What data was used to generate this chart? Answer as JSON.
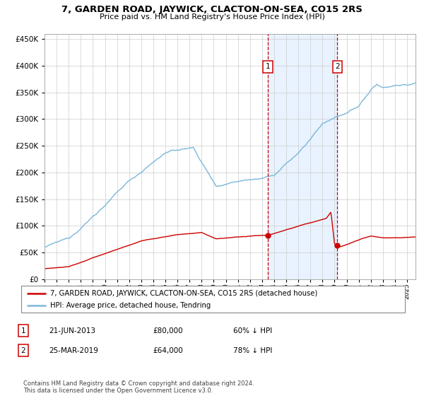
{
  "title": "7, GARDEN ROAD, JAYWICK, CLACTON-ON-SEA, CO15 2RS",
  "subtitle": "Price paid vs. HM Land Registry's House Price Index (HPI)",
  "hpi_color": "#7ab8d9",
  "price_color": "#cc0000",
  "marker_color": "#cc0000",
  "vline_color": "#cc0000",
  "shade_color": "#ddeeff",
  "transaction1_date": 2013.47,
  "transaction1_price": 80000,
  "transaction2_date": 2019.23,
  "transaction2_price": 64000,
  "ylim": [
    0,
    460000
  ],
  "xlim_start": 1995.0,
  "xlim_end": 2025.7,
  "ytick_step": 50000,
  "footnote": "Contains HM Land Registry data © Crown copyright and database right 2024.\nThis data is licensed under the Open Government Licence v3.0.",
  "legend1": "7, GARDEN ROAD, JAYWICK, CLACTON-ON-SEA, CO15 2RS (detached house)",
  "legend2": "HPI: Average price, detached house, Tendring",
  "table_row1": [
    "1",
    "21-JUN-2013",
    "£80,000",
    "60% ↓ HPI"
  ],
  "table_row2": [
    "2",
    "25-MAR-2019",
    "£64,000",
    "78% ↓ HPI"
  ]
}
